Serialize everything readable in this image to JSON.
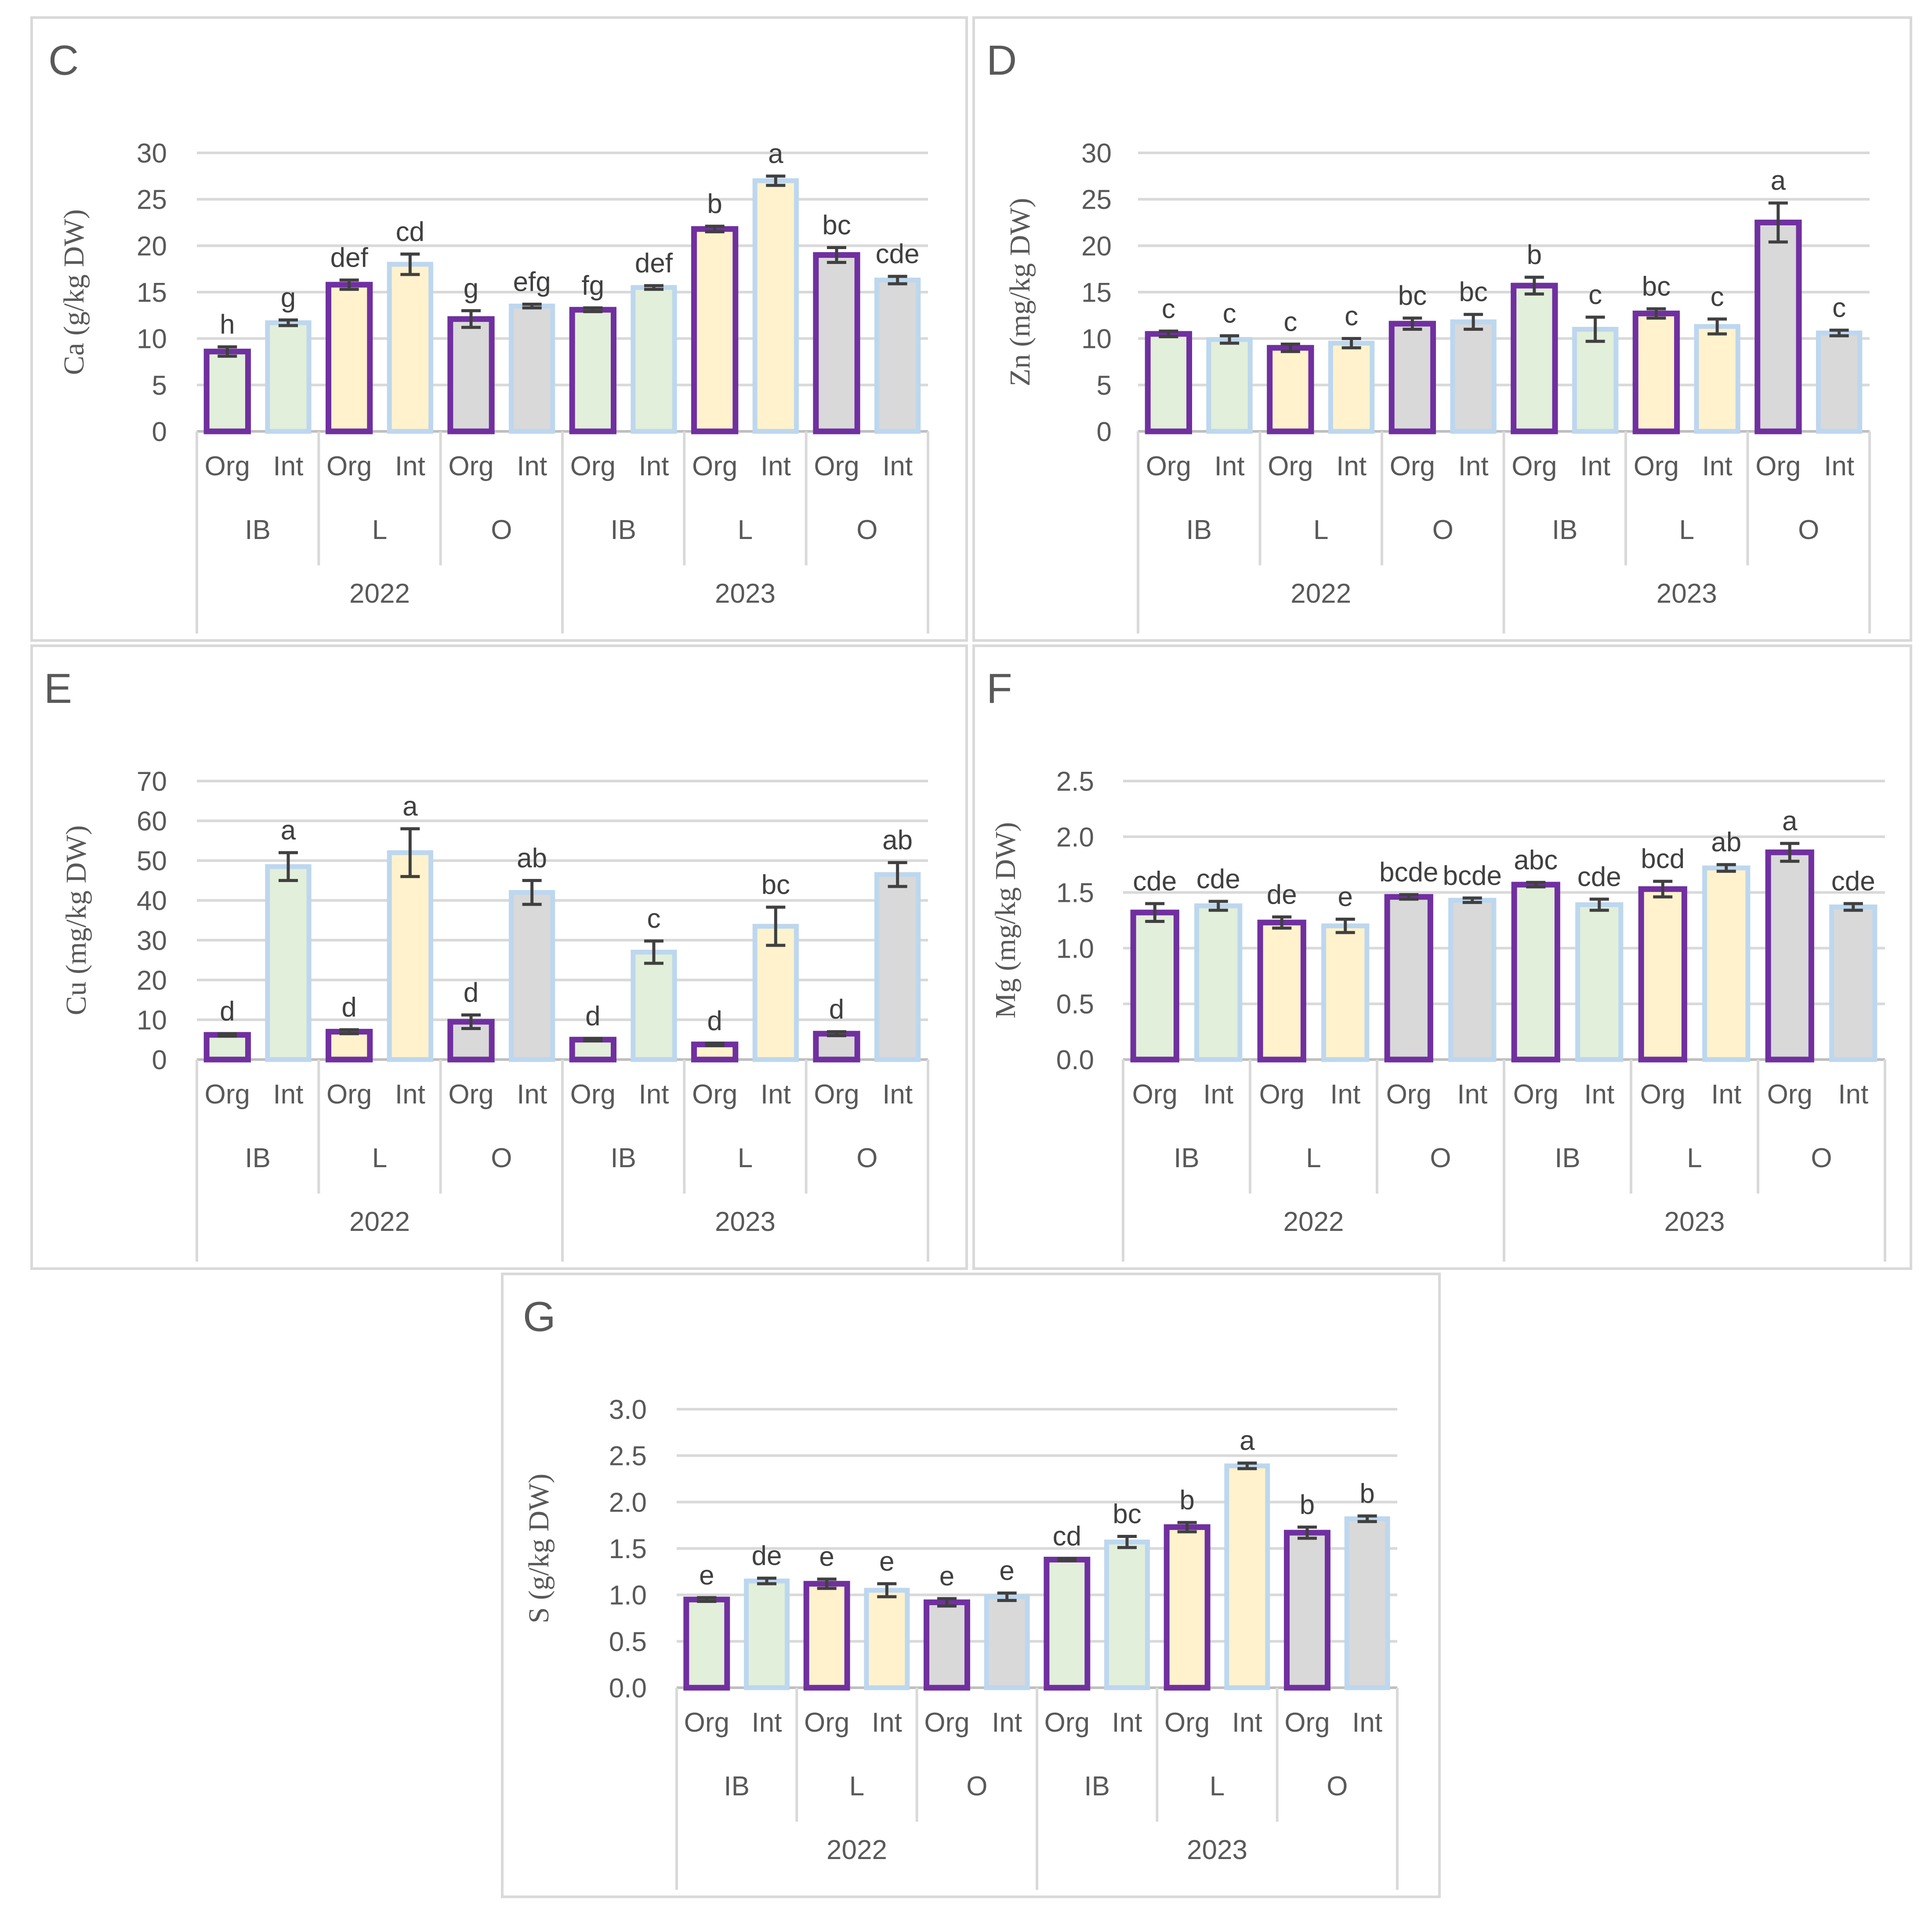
{
  "colors": {
    "org_stroke": "#7030a0",
    "int_stroke": "#bdd7ee",
    "fill_IB": "#e2efda",
    "fill_L": "#fff2cc",
    "fill_O": "#d9d9d9"
  },
  "chart_data": [
    {
      "panel": "C",
      "type": "bar",
      "ylabel": "Ca (g/kg DW)",
      "ylim": [
        0,
        30
      ],
      "yticks": [
        "0",
        "5",
        "10",
        "15",
        "20",
        "25",
        "30"
      ],
      "years": [
        "2022",
        "2023"
      ],
      "sites": [
        "IB",
        "L",
        "O",
        "IB",
        "L",
        "O"
      ],
      "systems": [
        "Org",
        "Int",
        "Org",
        "Int",
        "Org",
        "Int",
        "Org",
        "Int",
        "Org",
        "Int",
        "Org",
        "Int"
      ],
      "values": [
        8.6,
        11.7,
        15.8,
        18.0,
        12.1,
        13.5,
        13.1,
        15.5,
        21.8,
        27.0,
        19.0,
        16.3
      ],
      "errors": [
        0.5,
        0.3,
        0.5,
        1.1,
        0.9,
        0.2,
        0.2,
        0.2,
        0.3,
        0.5,
        0.8,
        0.4
      ],
      "letters": [
        "h",
        "g",
        "def",
        "cd",
        "g",
        "efg",
        "fg",
        "def",
        "b",
        "a",
        "bc",
        "cde"
      ]
    },
    {
      "panel": "D",
      "type": "bar",
      "ylabel": "Zn (mg/kg DW)",
      "ylim": [
        0,
        30
      ],
      "yticks": [
        "0",
        "5",
        "10",
        "15",
        "20",
        "25",
        "30"
      ],
      "years": [
        "2022",
        "2023"
      ],
      "sites": [
        "IB",
        "L",
        "O",
        "IB",
        "L",
        "O"
      ],
      "systems": [
        "Org",
        "Int",
        "Org",
        "Int",
        "Org",
        "Int",
        "Org",
        "Int",
        "Org",
        "Int",
        "Org",
        "Int"
      ],
      "values": [
        10.5,
        9.9,
        9.0,
        9.5,
        11.6,
        11.8,
        15.7,
        11.0,
        12.7,
        11.3,
        22.5,
        10.6
      ],
      "errors": [
        0.3,
        0.4,
        0.4,
        0.5,
        0.6,
        0.8,
        0.9,
        1.3,
        0.5,
        0.8,
        2.1,
        0.3
      ],
      "letters": [
        "c",
        "c",
        "c",
        "c",
        "bc",
        "bc",
        "b",
        "c",
        "bc",
        "c",
        "a",
        "c"
      ]
    },
    {
      "panel": "E",
      "type": "bar",
      "ylabel": "Cu (mg/kg DW)",
      "ylim": [
        0,
        70
      ],
      "yticks": [
        "0",
        "10",
        "20",
        "30",
        "40",
        "50",
        "60",
        "70"
      ],
      "years": [
        "2022",
        "2023"
      ],
      "sites": [
        "IB",
        "L",
        "O",
        "IB",
        "L",
        "O"
      ],
      "systems": [
        "Org",
        "Int",
        "Org",
        "Int",
        "Org",
        "Int",
        "Org",
        "Int",
        "Org",
        "Int",
        "Org",
        "Int"
      ],
      "values": [
        6.2,
        48.5,
        7.0,
        52.0,
        9.5,
        42.0,
        5.0,
        27.0,
        3.8,
        33.5,
        6.5,
        46.5
      ],
      "errors": [
        0.3,
        3.5,
        0.5,
        6.0,
        1.7,
        3.0,
        0.3,
        2.8,
        0.3,
        4.8,
        0.5,
        3.0
      ],
      "letters": [
        "d",
        "a",
        "d",
        "a",
        "d",
        "ab",
        "d",
        "c",
        "d",
        "bc",
        "d",
        "ab"
      ]
    },
    {
      "panel": "F",
      "type": "bar",
      "ylabel": "Mg (mg/kg DW)",
      "ylim": [
        0,
        2.5
      ],
      "yticks": [
        "0.0",
        "0.5",
        "1.0",
        "1.5",
        "2.0",
        "2.5"
      ],
      "years": [
        "2022",
        "2023"
      ],
      "sites": [
        "IB",
        "L",
        "O",
        "IB",
        "L",
        "O"
      ],
      "systems": [
        "Org",
        "Int",
        "Org",
        "Int",
        "Org",
        "Int",
        "Org",
        "Int",
        "Org",
        "Int",
        "Org",
        "Int"
      ],
      "values": [
        1.32,
        1.38,
        1.23,
        1.2,
        1.46,
        1.43,
        1.57,
        1.39,
        1.53,
        1.72,
        1.86,
        1.37
      ],
      "errors": [
        0.08,
        0.04,
        0.05,
        0.06,
        0.02,
        0.02,
        0.02,
        0.05,
        0.07,
        0.03,
        0.08,
        0.03
      ],
      "letters": [
        "cde",
        "cde",
        "de",
        "e",
        "bcde",
        "bcde",
        "abc",
        "cde",
        "bcd",
        "ab",
        "a",
        "cde"
      ]
    },
    {
      "panel": "G",
      "type": "bar",
      "ylabel": "S (g/kg DW)",
      "ylim": [
        0,
        3.0
      ],
      "yticks": [
        "0.0",
        "0.5",
        "1.0",
        "1.5",
        "2.0",
        "2.5",
        "3.0"
      ],
      "years": [
        "2022",
        "2023"
      ],
      "sites": [
        "IB",
        "L",
        "O",
        "IB",
        "L",
        "O"
      ],
      "systems": [
        "Org",
        "Int",
        "Org",
        "Int",
        "Org",
        "Int",
        "Org",
        "Int",
        "Org",
        "Int",
        "Org",
        "Int"
      ],
      "values": [
        0.95,
        1.15,
        1.12,
        1.05,
        0.92,
        0.98,
        1.38,
        1.57,
        1.73,
        2.39,
        1.67,
        1.82
      ],
      "errors": [
        0.02,
        0.03,
        0.05,
        0.07,
        0.04,
        0.04,
        0.01,
        0.06,
        0.05,
        0.03,
        0.06,
        0.03
      ],
      "letters": [
        "e",
        "de",
        "e",
        "e",
        "e",
        "e",
        "cd",
        "bc",
        "b",
        "a",
        "b",
        "b"
      ]
    }
  ]
}
